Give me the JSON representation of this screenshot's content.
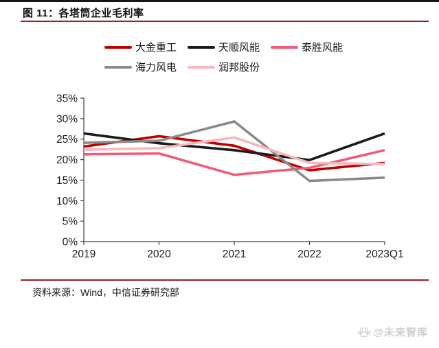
{
  "header": {
    "title": "图 11：各塔筒企业毛利率"
  },
  "footer": {
    "source": "资料来源：Wind，中信证券研究部",
    "watermark": "@未来智库"
  },
  "colors": {
    "accent_red": "#9c2020",
    "top_bar": "#161616",
    "axis": "#404040",
    "tick_text": "#1a1a1a",
    "watermark_gray": "#cfcfcf"
  },
  "chart_data": {
    "type": "line",
    "title": "各塔筒企业毛利率",
    "categories": [
      "2019",
      "2020",
      "2021",
      "2022",
      "2023Q1"
    ],
    "series": [
      {
        "name": "大金重工",
        "color": "#c00000",
        "values": [
          23.2,
          25.7,
          23.4,
          17.4,
          19.2
        ]
      },
      {
        "name": "天顺风能",
        "color": "#1a1a1a",
        "values": [
          26.4,
          24.0,
          22.3,
          19.9,
          26.4
        ]
      },
      {
        "name": "泰胜风能",
        "color": "#ee5c78",
        "values": [
          21.3,
          21.5,
          16.3,
          18.0,
          22.3
        ]
      },
      {
        "name": "海力风电",
        "color": "#8a8a8a",
        "values": [
          24.1,
          24.6,
          29.3,
          14.8,
          15.6
        ]
      },
      {
        "name": "润邦股份",
        "color": "#f7b8bd",
        "values": [
          22.4,
          22.8,
          25.4,
          19.2,
          18.9
        ]
      }
    ],
    "ylim": [
      0,
      35
    ],
    "ytick_step": 5,
    "ytick_labels": [
      "0%",
      "5%",
      "10%",
      "15%",
      "20%",
      "25%",
      "30%",
      "35%"
    ],
    "xlabel": "",
    "ylabel": "",
    "grid": false,
    "legend_position": "top",
    "line_width": 3.6
  }
}
